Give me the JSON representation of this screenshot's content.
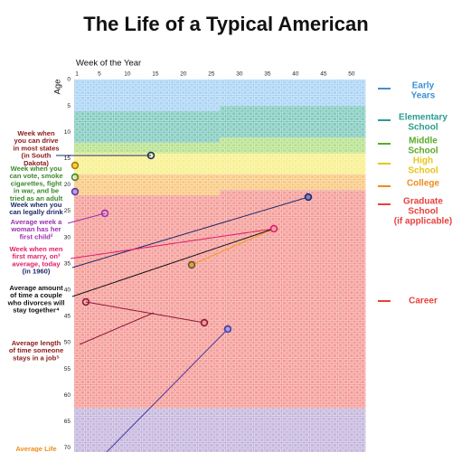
{
  "title": "The Life of a Typical American",
  "x_axis": {
    "label": "Week of the Year",
    "ticks": [
      1,
      5,
      10,
      15,
      20,
      25,
      30,
      35,
      40,
      45,
      50
    ]
  },
  "y_axis": {
    "label": "Age",
    "ticks": [
      0,
      5,
      10,
      15,
      20,
      25,
      30,
      35,
      40,
      45,
      50,
      55,
      60,
      65,
      70
    ]
  },
  "stages": [
    {
      "lines": [
        "Early",
        "Years"
      ]
    },
    {
      "lines": [
        "Elementary",
        "School"
      ]
    },
    {
      "lines": [
        "Middle",
        "School"
      ]
    },
    {
      "lines": [
        "High",
        "School"
      ]
    },
    {
      "lines": [
        "College"
      ]
    },
    {
      "lines": [
        "Graduate",
        "School",
        "(if applicable)"
      ]
    },
    {
      "lines": [
        "Career"
      ]
    }
  ],
  "annotations": [
    {
      "lines": [
        "Week when",
        "you can drive",
        "in most states",
        "(in South",
        "Dakota)"
      ]
    },
    {
      "lines": [
        "Week when you",
        "can vote, smoke",
        "cigarettes, fight",
        "in war, and be",
        "tried as an adult"
      ]
    },
    {
      "lines": [
        "Week when you",
        "can legally drink"
      ]
    },
    {
      "lines": [
        "Average week a",
        "woman has her",
        "first child²"
      ]
    },
    {
      "lines": [
        "Week when men",
        "first marry, on³",
        "average, today",
        "(in 1960)"
      ]
    },
    {
      "lines": [
        "Average amount",
        "of time a couple",
        "who divorces will",
        "stay together⁴"
      ]
    },
    {
      "lines": [
        "Average length",
        "of time someone",
        "stays in a job⁵"
      ]
    },
    {
      "lines": [
        "Average Life"
      ]
    }
  ]
}
